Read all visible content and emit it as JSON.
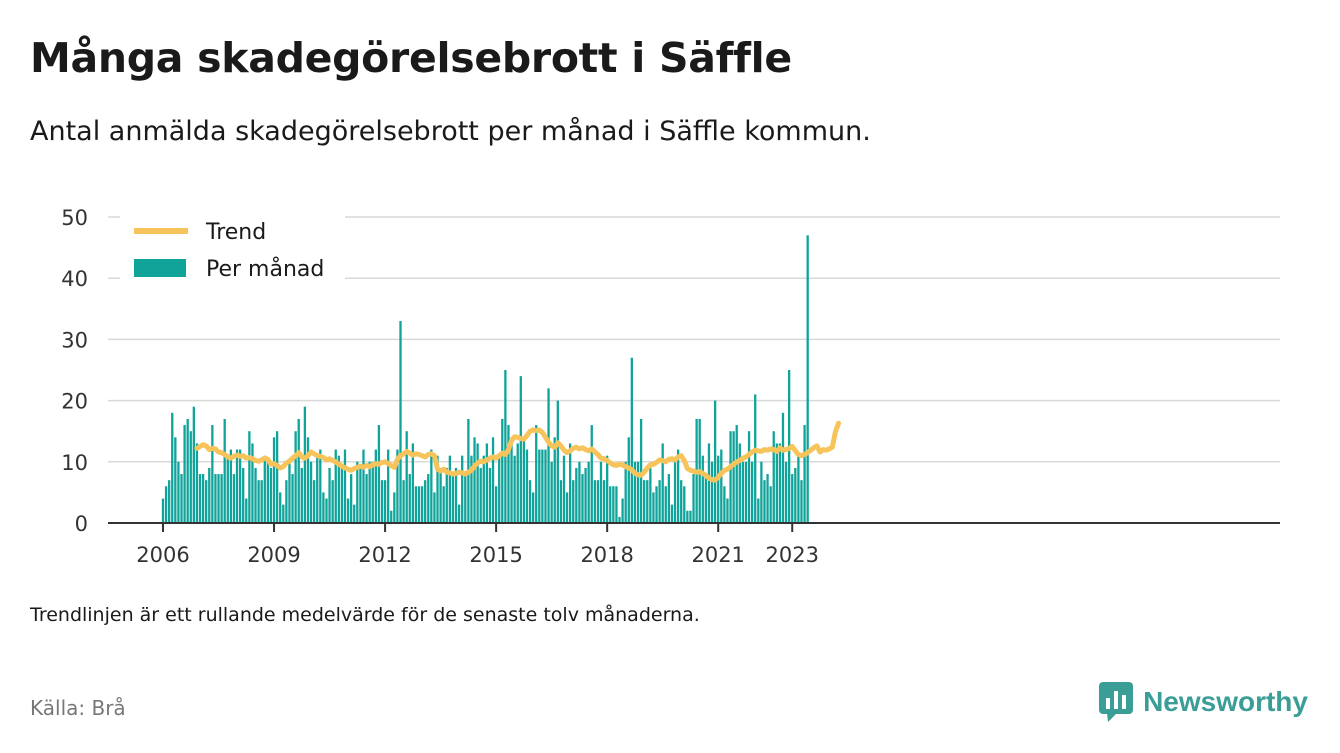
{
  "header": {
    "title": "Många skadegörelsebrott i Säffle",
    "subtitle": "Antal anmälda skadegörelsebrott per månad i Säffle kommun."
  },
  "footer": {
    "note": "Trendlinjen är ett rullande medelvärde för de senaste tolv månaderna.",
    "source": "Källa: Brå",
    "brand": "Newsworthy",
    "brand_icon": "bar-chart-bubble-icon"
  },
  "colors": {
    "bars": "#0fa39a",
    "trend": "#f7c35b",
    "grid": "#d9d9d9",
    "axis": "#333333",
    "brand": "#3a9e97"
  },
  "chart_data": {
    "type": "bar",
    "title": "Många skadegörelsebrott i Säffle",
    "subtitle": "Antal anmälda skadegörelsebrott per månad i Säffle kommun.",
    "x_start": "2006-01",
    "x_end": "2023-04",
    "x_ticks": [
      "2006",
      "2009",
      "2012",
      "2015",
      "2018",
      "2021",
      "2023"
    ],
    "y_ticks": [
      0,
      10,
      20,
      30,
      40,
      50
    ],
    "ylim": [
      0,
      50
    ],
    "grid": true,
    "legend_position": "top-left",
    "series": [
      {
        "name": "Per månad",
        "type": "bar",
        "values": [
          4,
          6,
          7,
          18,
          14,
          10,
          8,
          16,
          17,
          15,
          19,
          13,
          8,
          8,
          7,
          9,
          16,
          8,
          8,
          8,
          17,
          11,
          12,
          8,
          12,
          12,
          9,
          4,
          15,
          13,
          9,
          7,
          7,
          11,
          10,
          9,
          14,
          15,
          5,
          3,
          7,
          10,
          8,
          15,
          17,
          9,
          19,
          14,
          10,
          7,
          11,
          12,
          5,
          4,
          9,
          7,
          12,
          11,
          9,
          12,
          4,
          8,
          3,
          10,
          9,
          12,
          8,
          10,
          10,
          12,
          16,
          7,
          7,
          12,
          2,
          5,
          12,
          33,
          7,
          15,
          8,
          13,
          6,
          6,
          6,
          7,
          8,
          12,
          5,
          11,
          9,
          6,
          9,
          11,
          8,
          9,
          3,
          11,
          8,
          17,
          11,
          14,
          13,
          9,
          11,
          13,
          9,
          14,
          6,
          11,
          17,
          25,
          16,
          13,
          11,
          13,
          24,
          14,
          12,
          7,
          5,
          16,
          12,
          12,
          12,
          22,
          10,
          14,
          20,
          7,
          11,
          5,
          13,
          7,
          9,
          10,
          8,
          9,
          10,
          16,
          7,
          7,
          10,
          7,
          11,
          6,
          6,
          6,
          1,
          4,
          10,
          14,
          27,
          10,
          10,
          17,
          7,
          7,
          9,
          5,
          6,
          7,
          13,
          6,
          8,
          3,
          10,
          12,
          7,
          6,
          2,
          2,
          8,
          17,
          17,
          11,
          8,
          13,
          10,
          20,
          11,
          12,
          6,
          4,
          15,
          15,
          16,
          13,
          10,
          10,
          15,
          10,
          21,
          4,
          10,
          7,
          8,
          6,
          15,
          13,
          13,
          18,
          10,
          25,
          8,
          9,
          11,
          7,
          16,
          47
        ]
      },
      {
        "name": "Trend",
        "type": "line",
        "start": "2006-12",
        "values": [
          12.2,
          12.5,
          12.8,
          12.6,
          12.0,
          12.2,
          12.1,
          11.6,
          11.5,
          11.2,
          10.8,
          10.6,
          10.9,
          11.1,
          10.9,
          11.0,
          10.6,
          10.7,
          10.5,
          10.2,
          10.1,
          10.3,
          10.6,
          10.4,
          9.6,
          9.7,
          9.4,
          9.0,
          9.2,
          9.8,
          10.1,
          10.6,
          11.0,
          11.5,
          10.8,
          10.6,
          11.0,
          11.6,
          11.3,
          11.0,
          10.9,
          10.7,
          10.3,
          10.5,
          10.2,
          10.0,
          9.6,
          9.3,
          9.0,
          8.8,
          8.6,
          8.9,
          9.1,
          9.3,
          9.1,
          9.4,
          9.2,
          9.5,
          9.7,
          9.6,
          9.9,
          10.0,
          9.7,
          9.4,
          9.1,
          10.4,
          11.0,
          11.3,
          11.7,
          11.4,
          11.1,
          11.3,
          11.2,
          11.0,
          10.8,
          11.2,
          11.3,
          11.0,
          8.8,
          8.5,
          8.8,
          8.3,
          8.2,
          8.0,
          8.1,
          8.3,
          8.2,
          8.0,
          8.3,
          8.6,
          9.3,
          9.8,
          10.1,
          10.0,
          10.3,
          10.6,
          10.8,
          10.6,
          11.0,
          11.4,
          11.2,
          12.0,
          13.5,
          14.1,
          14.0,
          13.8,
          13.7,
          14.3,
          15.0,
          15.2,
          15.1,
          15.2,
          14.8,
          14.0,
          13.2,
          12.6,
          12.4,
          13.1,
          12.6,
          11.9,
          11.5,
          11.8,
          12.2,
          12.4,
          12.1,
          12.3,
          12.0,
          11.8,
          12.1,
          11.6,
          11.2,
          10.6,
          10.5,
          10.2,
          9.8,
          9.5,
          9.4,
          9.6,
          9.5,
          9.2,
          9.0,
          8.7,
          8.1,
          7.9,
          7.8,
          8.3,
          9.0,
          9.5,
          9.6,
          9.9,
          10.3,
          10.2,
          10.0,
          10.4,
          10.5,
          10.3,
          10.8,
          11.0,
          10.2,
          8.9,
          8.6,
          8.5,
          8.3,
          8.4,
          8.1,
          7.8,
          7.3,
          7.1,
          7.0,
          7.5,
          8.1,
          8.6,
          8.8,
          9.2,
          9.6,
          10.0,
          10.2,
          10.6,
          10.8,
          11.2,
          11.6,
          11.9,
          11.8,
          11.7,
          12.0,
          11.9,
          12.1,
          12.0,
          11.7,
          12.3,
          11.9,
          12.0,
          12.2,
          12.5,
          11.8,
          11.2,
          11.0,
          11.2,
          11.5,
          11.9,
          12.3,
          12.6,
          11.6,
          12.0,
          11.9,
          12.1,
          12.4,
          14.9,
          16.3
        ]
      }
    ]
  }
}
